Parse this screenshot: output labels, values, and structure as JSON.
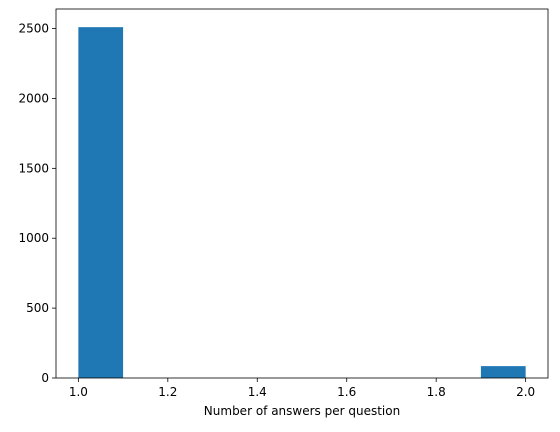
{
  "chart_data": {
    "type": "bar",
    "subtype": "histogram",
    "title": "",
    "xlabel": "Number of answers per question",
    "ylabel": "",
    "xlim": [
      0.95,
      2.05
    ],
    "ylim": [
      0,
      2640
    ],
    "x_ticks": [
      1.0,
      1.2,
      1.4,
      1.6,
      1.8,
      2.0
    ],
    "x_tick_labels": [
      "1.0",
      "1.2",
      "1.4",
      "1.6",
      "1.8",
      "2.0"
    ],
    "y_ticks": [
      0,
      500,
      1000,
      1500,
      2000,
      2500
    ],
    "y_tick_labels": [
      "0",
      "500",
      "1000",
      "1500",
      "2000",
      "2500"
    ],
    "bin_edges": [
      1.0,
      1.1,
      1.2,
      1.3,
      1.4,
      1.5,
      1.6,
      1.7,
      1.8,
      1.9,
      2.0
    ],
    "counts": [
      2510,
      0,
      0,
      0,
      0,
      0,
      0,
      0,
      0,
      85
    ],
    "bar_color": "#1f77b4",
    "grid": false,
    "legend": "none"
  }
}
